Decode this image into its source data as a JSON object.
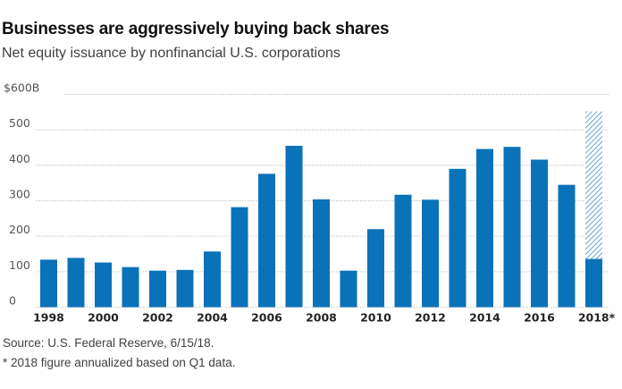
{
  "header": {
    "title": "Businesses are aggressively buying back shares",
    "subtitle": "Net equity issuance by nonfinancial U.S. corporations"
  },
  "footer": {
    "source": "Source: U.S. Federal Reserve, 6/15/18.",
    "note": "* 2018 figure annualized based on Q1 data."
  },
  "colors": {
    "bar": "#0a72b9",
    "hatch": "#3a8fd0",
    "grid": "#c8c8c8"
  },
  "chart_data": {
    "type": "bar",
    "title": "Businesses are aggressively buying back shares",
    "subtitle": "Net equity issuance by nonfinancial U.S. corporations",
    "xlabel": "",
    "ylabel": "",
    "unit": "$B",
    "ylim": [
      0,
      600
    ],
    "grid": true,
    "y_ticks": [
      0,
      100,
      200,
      300,
      400,
      500,
      600
    ],
    "y_tick_labels": [
      "0",
      "100",
      "200",
      "300",
      "400",
      "500",
      "$600B"
    ],
    "categories": [
      "1998",
      "1999",
      "2000",
      "2001",
      "2002",
      "2003",
      "2004",
      "2005",
      "2006",
      "2007",
      "2008",
      "2009",
      "2010",
      "2011",
      "2012",
      "2013",
      "2014",
      "2015",
      "2016",
      "2017",
      "2018*"
    ],
    "x_tick_labels": [
      "1998",
      "2000",
      "2002",
      "2004",
      "2006",
      "2008",
      "2010",
      "2012",
      "2014",
      "2016",
      "2018*"
    ],
    "series": [
      {
        "name": "Net equity buybacks",
        "style": "solid",
        "values": [
          134,
          139,
          126,
          113,
          103,
          105,
          157,
          282,
          376,
          455,
          304,
          103,
          220,
          317,
          303,
          390,
          446,
          452,
          416,
          345,
          136
        ]
      },
      {
        "name": "2018 annualized (based on Q1 data)",
        "style": "hatched",
        "values": [
          null,
          null,
          null,
          null,
          null,
          null,
          null,
          null,
          null,
          null,
          null,
          null,
          null,
          null,
          null,
          null,
          null,
          null,
          null,
          null,
          552
        ]
      }
    ]
  }
}
